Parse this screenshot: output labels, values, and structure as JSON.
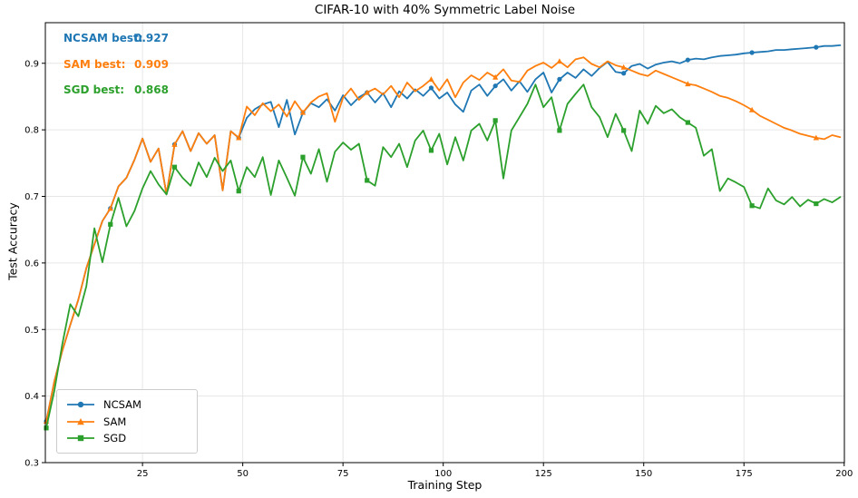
{
  "chart_data": {
    "type": "line",
    "title": "CIFAR-10 with 40% Symmetric Label Noise",
    "xlabel": "Training Step",
    "ylabel": "Test Accuracy",
    "xlim": [
      0.77,
      200.05
    ],
    "ylim": [
      0.3,
      0.961
    ],
    "xticks": [
      25,
      50,
      75,
      100,
      125,
      150,
      175,
      200
    ],
    "yticks": [
      0.3,
      0.4,
      0.5,
      0.6,
      0.7,
      0.8,
      0.9
    ],
    "grid": true,
    "grid_color": "#e6e6e6",
    "legend_position": "lower left",
    "marker_every": 8,
    "x": [
      1,
      3,
      5,
      7,
      9,
      11,
      13,
      15,
      17,
      19,
      21,
      23,
      25,
      27,
      29,
      31,
      33,
      35,
      37,
      39,
      41,
      43,
      45,
      47,
      49,
      51,
      53,
      55,
      57,
      59,
      61,
      63,
      65,
      67,
      69,
      71,
      73,
      75,
      77,
      79,
      81,
      83,
      85,
      87,
      89,
      91,
      93,
      95,
      97,
      99,
      101,
      103,
      105,
      107,
      109,
      111,
      113,
      115,
      117,
      119,
      121,
      123,
      125,
      127,
      129,
      131,
      133,
      135,
      137,
      139,
      141,
      143,
      145,
      147,
      149,
      151,
      153,
      155,
      157,
      159,
      161,
      163,
      165,
      167,
      169,
      171,
      173,
      175,
      177,
      179,
      181,
      183,
      185,
      187,
      189,
      191,
      193,
      195,
      197,
      199
    ],
    "series": [
      {
        "name": "NCSAM",
        "color": "#1f77b4",
        "marker": "circle",
        "best": 0.927,
        "values": [
          0.362,
          0.422,
          0.468,
          0.507,
          0.545,
          0.592,
          0.628,
          0.663,
          0.682,
          0.715,
          0.728,
          0.755,
          0.787,
          0.752,
          0.772,
          0.703,
          0.778,
          0.798,
          0.768,
          0.795,
          0.779,
          0.792,
          0.709,
          0.798,
          0.788,
          0.818,
          0.831,
          0.838,
          0.842,
          0.804,
          0.845,
          0.793,
          0.826,
          0.84,
          0.834,
          0.846,
          0.829,
          0.852,
          0.837,
          0.849,
          0.856,
          0.841,
          0.855,
          0.834,
          0.858,
          0.847,
          0.861,
          0.851,
          0.863,
          0.847,
          0.856,
          0.838,
          0.827,
          0.859,
          0.868,
          0.851,
          0.866,
          0.876,
          0.859,
          0.873,
          0.857,
          0.876,
          0.886,
          0.856,
          0.876,
          0.886,
          0.878,
          0.891,
          0.881,
          0.893,
          0.902,
          0.887,
          0.885,
          0.896,
          0.899,
          0.892,
          0.898,
          0.901,
          0.903,
          0.9,
          0.905,
          0.907,
          0.906,
          0.909,
          0.911,
          0.912,
          0.913,
          0.915,
          0.916,
          0.917,
          0.918,
          0.92,
          0.92,
          0.921,
          0.922,
          0.923,
          0.924,
          0.926,
          0.926,
          0.927
        ]
      },
      {
        "name": "SAM",
        "color": "#ff7f0e",
        "marker": "triangle",
        "best": 0.909,
        "values": [
          0.362,
          0.422,
          0.468,
          0.507,
          0.545,
          0.592,
          0.628,
          0.663,
          0.682,
          0.715,
          0.728,
          0.755,
          0.787,
          0.752,
          0.772,
          0.703,
          0.778,
          0.798,
          0.768,
          0.795,
          0.779,
          0.792,
          0.709,
          0.798,
          0.788,
          0.835,
          0.822,
          0.84,
          0.828,
          0.838,
          0.82,
          0.843,
          0.826,
          0.841,
          0.85,
          0.855,
          0.812,
          0.848,
          0.862,
          0.845,
          0.856,
          0.862,
          0.853,
          0.866,
          0.849,
          0.871,
          0.858,
          0.866,
          0.876,
          0.859,
          0.876,
          0.849,
          0.871,
          0.882,
          0.875,
          0.886,
          0.879,
          0.891,
          0.874,
          0.872,
          0.889,
          0.896,
          0.901,
          0.893,
          0.903,
          0.894,
          0.906,
          0.909,
          0.899,
          0.894,
          0.903,
          0.897,
          0.894,
          0.889,
          0.884,
          0.881,
          0.889,
          0.884,
          0.879,
          0.874,
          0.869,
          0.867,
          0.862,
          0.857,
          0.851,
          0.848,
          0.843,
          0.837,
          0.83,
          0.821,
          0.815,
          0.809,
          0.803,
          0.799,
          0.794,
          0.791,
          0.788,
          0.786,
          0.792,
          0.789
        ]
      },
      {
        "name": "SGD",
        "color": "#2ca02c",
        "marker": "square",
        "best": 0.868,
        "values": [
          0.352,
          0.408,
          0.478,
          0.538,
          0.52,
          0.565,
          0.652,
          0.601,
          0.658,
          0.698,
          0.655,
          0.678,
          0.712,
          0.738,
          0.718,
          0.703,
          0.744,
          0.728,
          0.716,
          0.751,
          0.729,
          0.758,
          0.738,
          0.754,
          0.708,
          0.744,
          0.729,
          0.759,
          0.702,
          0.754,
          0.728,
          0.701,
          0.759,
          0.734,
          0.771,
          0.722,
          0.767,
          0.781,
          0.77,
          0.779,
          0.724,
          0.716,
          0.774,
          0.759,
          0.779,
          0.744,
          0.784,
          0.799,
          0.769,
          0.794,
          0.748,
          0.789,
          0.754,
          0.799,
          0.809,
          0.784,
          0.814,
          0.727,
          0.799,
          0.819,
          0.839,
          0.868,
          0.834,
          0.849,
          0.799,
          0.839,
          0.854,
          0.868,
          0.834,
          0.819,
          0.789,
          0.824,
          0.799,
          0.768,
          0.829,
          0.809,
          0.836,
          0.825,
          0.831,
          0.819,
          0.811,
          0.803,
          0.761,
          0.771,
          0.708,
          0.727,
          0.721,
          0.714,
          0.686,
          0.682,
          0.712,
          0.694,
          0.688,
          0.699,
          0.685,
          0.695,
          0.689,
          0.696,
          0.691,
          0.699
        ]
      }
    ]
  },
  "annotations": [
    {
      "label": "NCSAM best:",
      "value": "0.927",
      "color": "#1f77b4"
    },
    {
      "label": "SAM best:",
      "value": "0.909",
      "color": "#ff7f0e"
    },
    {
      "label": "SGD best:",
      "value": "0.868",
      "color": "#2ca02c"
    }
  ]
}
